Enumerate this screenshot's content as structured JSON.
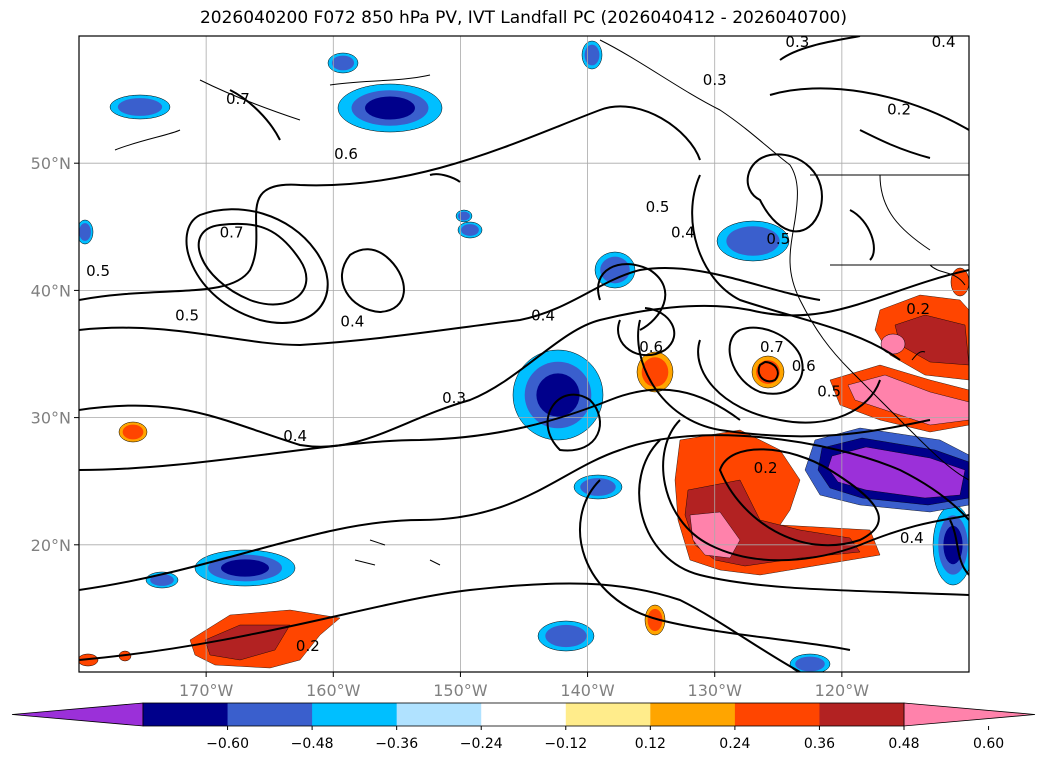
{
  "title": "2026040200 F072 850 hPa PV, IVT Landfall PC (2026040412 - 2026040700)",
  "map": {
    "projection": "PlateCarree",
    "lon_range": [
      -180,
      -110
    ],
    "lat_range": [
      10,
      60
    ],
    "lon_ticks": [
      {
        "value": -170,
        "label": "170°W"
      },
      {
        "value": -160,
        "label": "160°W"
      },
      {
        "value": -150,
        "label": "150°W"
      },
      {
        "value": -140,
        "label": "140°W"
      },
      {
        "value": -130,
        "label": "130°W"
      },
      {
        "value": -120,
        "label": "120°W"
      }
    ],
    "lat_ticks": [
      {
        "value": 20,
        "label": "20°N"
      },
      {
        "value": 30,
        "label": "30°N"
      },
      {
        "value": 40,
        "label": "40°N"
      },
      {
        "value": 50,
        "label": "50°N"
      }
    ],
    "grid": true,
    "fill_field": "IVT Landfall PC (shaded)",
    "contour_field": "850 hPa PV (black contours)",
    "contour_labels": [
      {
        "text": "0.7",
        "lon": -167.5,
        "lat": 55.0
      },
      {
        "text": "0.6",
        "lon": -159.0,
        "lat": 50.7
      },
      {
        "text": "0.7",
        "lon": -168.0,
        "lat": 44.5
      },
      {
        "text": "0.5",
        "lon": -178.5,
        "lat": 41.5
      },
      {
        "text": "0.5",
        "lon": -171.5,
        "lat": 38.0
      },
      {
        "text": "0.4",
        "lon": -158.5,
        "lat": 37.5
      },
      {
        "text": "0.4",
        "lon": -143.5,
        "lat": 38.0
      },
      {
        "text": "0.3",
        "lon": -150.5,
        "lat": 31.5
      },
      {
        "text": "0.4",
        "lon": -163.0,
        "lat": 28.5
      },
      {
        "text": "0.5",
        "lon": -134.5,
        "lat": 46.5
      },
      {
        "text": "0.4",
        "lon": -132.5,
        "lat": 44.5
      },
      {
        "text": "0.6",
        "lon": -135.0,
        "lat": 35.5
      },
      {
        "text": "0.7",
        "lon": -125.5,
        "lat": 35.5
      },
      {
        "text": "0.6",
        "lon": -123.0,
        "lat": 34.0
      },
      {
        "text": "0.5",
        "lon": -121.0,
        "lat": 32.0
      },
      {
        "text": "0.2",
        "lon": -126.0,
        "lat": 26.0
      },
      {
        "text": "0.4",
        "lon": -114.5,
        "lat": 20.5
      },
      {
        "text": "0.2",
        "lon": -162.0,
        "lat": 12.0
      },
      {
        "text": "0.2",
        "lon": -115.5,
        "lat": 54.2
      },
      {
        "text": "0.3",
        "lon": -123.5,
        "lat": 59.5
      },
      {
        "text": "0.4",
        "lon": -112.0,
        "lat": 59.5
      },
      {
        "text": "0.2",
        "lon": -114.0,
        "lat": 38.5
      },
      {
        "text": "0.3",
        "lon": -130.0,
        "lat": 56.5
      },
      {
        "text": "0.5",
        "lon": -125.0,
        "lat": 44.0
      }
    ]
  },
  "colorbar": {
    "colors": [
      "#9b30d9",
      "#00008b",
      "#3a5fcd",
      "#00bfff",
      "#b0e2ff",
      "#ffffff",
      "#ffec8b",
      "#ffa500",
      "#ff4500",
      "#b22222",
      "#ff82ab"
    ],
    "tick_labels": [
      "−0.60",
      "−0.48",
      "−0.36",
      "−0.24",
      "−0.12",
      "0.12",
      "0.24",
      "0.36",
      "0.48",
      "0.60"
    ]
  },
  "colors": {
    "contour": "#000000",
    "grid": "#a9a9a9",
    "coastline": "#000000"
  }
}
